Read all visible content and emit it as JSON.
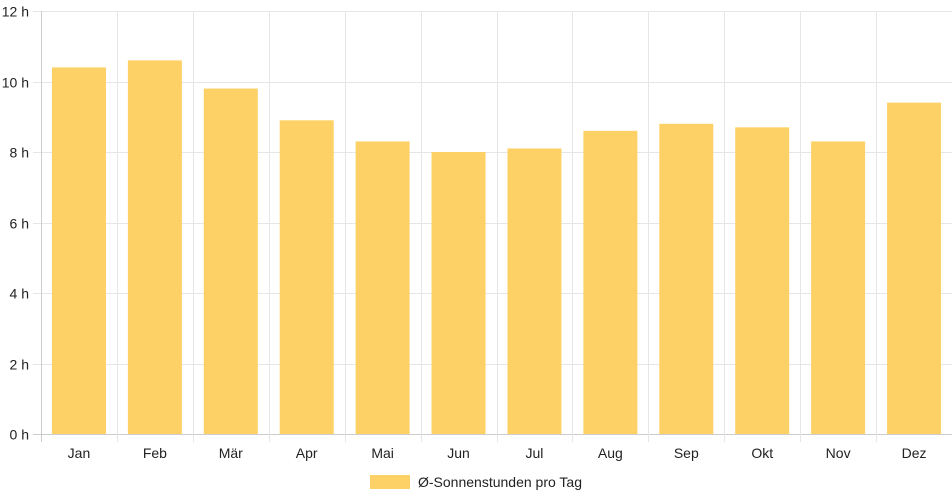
{
  "chart_data": {
    "type": "bar",
    "categories": [
      "Jan",
      "Feb",
      "Mär",
      "Apr",
      "Mai",
      "Jun",
      "Jul",
      "Aug",
      "Sep",
      "Okt",
      "Nov",
      "Dez"
    ],
    "series": [
      {
        "name": "Ø-Sonnenstunden pro Tag",
        "values": [
          10.4,
          10.6,
          9.8,
          8.9,
          8.3,
          8.0,
          8.1,
          8.6,
          8.8,
          8.7,
          8.3,
          9.4
        ],
        "color": "#fdd166"
      }
    ],
    "y_ticks": [
      "0 h",
      "2 h",
      "4 h",
      "6 h",
      "8 h",
      "10 h",
      "12 h"
    ],
    "ylim": [
      0,
      12
    ],
    "y_step": 2,
    "grid": true,
    "legend_position": "bottom",
    "colors": {
      "grid": "#e6e6e6",
      "axis": "#cccccc"
    }
  }
}
